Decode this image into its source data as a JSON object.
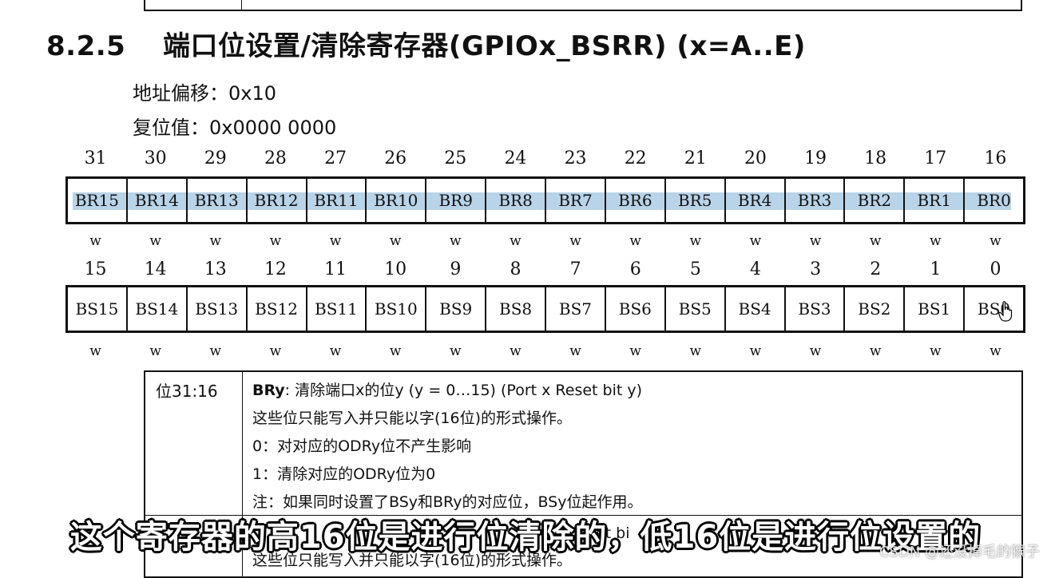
{
  "heading": {
    "number": "8.2.5",
    "title": "端口位设置/清除寄存器(GPIOx_BSRR) (x=A..E)"
  },
  "meta": {
    "offset": "地址偏移：0x10",
    "reset": "复位值：0x0000  0000"
  },
  "register_high": {
    "bit_numbers": [
      "31",
      "30",
      "29",
      "28",
      "27",
      "26",
      "25",
      "24",
      "23",
      "22",
      "21",
      "20",
      "19",
      "18",
      "17",
      "16"
    ],
    "fields": [
      "BR15",
      "BR14",
      "BR13",
      "BR12",
      "BR11",
      "BR10",
      "BR9",
      "BR8",
      "BR7",
      "BR6",
      "BR5",
      "BR4",
      "BR3",
      "BR2",
      "BR1",
      "BR0"
    ],
    "access": [
      "w",
      "w",
      "w",
      "w",
      "w",
      "w",
      "w",
      "w",
      "w",
      "w",
      "w",
      "w",
      "w",
      "w",
      "w",
      "w"
    ]
  },
  "register_low": {
    "bit_numbers": [
      "15",
      "14",
      "13",
      "12",
      "11",
      "10",
      "9",
      "8",
      "7",
      "6",
      "5",
      "4",
      "3",
      "2",
      "1",
      "0"
    ],
    "fields": [
      "BS15",
      "BS14",
      "BS13",
      "BS12",
      "BS11",
      "BS10",
      "BS9",
      "BS8",
      "BS7",
      "BS6",
      "BS5",
      "BS4",
      "BS3",
      "BS2",
      "BS1",
      "BS0"
    ],
    "access": [
      "w",
      "w",
      "w",
      "w",
      "w",
      "w",
      "w",
      "w",
      "w",
      "w",
      "w",
      "w",
      "w",
      "w",
      "w",
      "w"
    ]
  },
  "description": {
    "bits_label": "位31:16",
    "name": "BRy",
    "summary": ": 清除端口x的位y (y = 0…15) (Port x Reset bit y)",
    "lines": [
      "这些位只能写入并只能以字(16位)的形式操作。",
      "0：对对应的ODRy位不产生影响",
      "1：清除对应的ODRy位为0",
      "注：如果同时设置了BSy和BRy的对应位，BSy位起作用。"
    ],
    "next_row_partial": "这些位只能写入并只能以字(16位)的形式操作。",
    "next_row_partial_right": "et bi"
  },
  "subtitle": "这个寄存器的高16位是进行位清除的，低16位是进行位设置的",
  "watermark": "CSDN @还没掉毛的猴子",
  "colors": {
    "highlight": "#b9d3e8"
  }
}
